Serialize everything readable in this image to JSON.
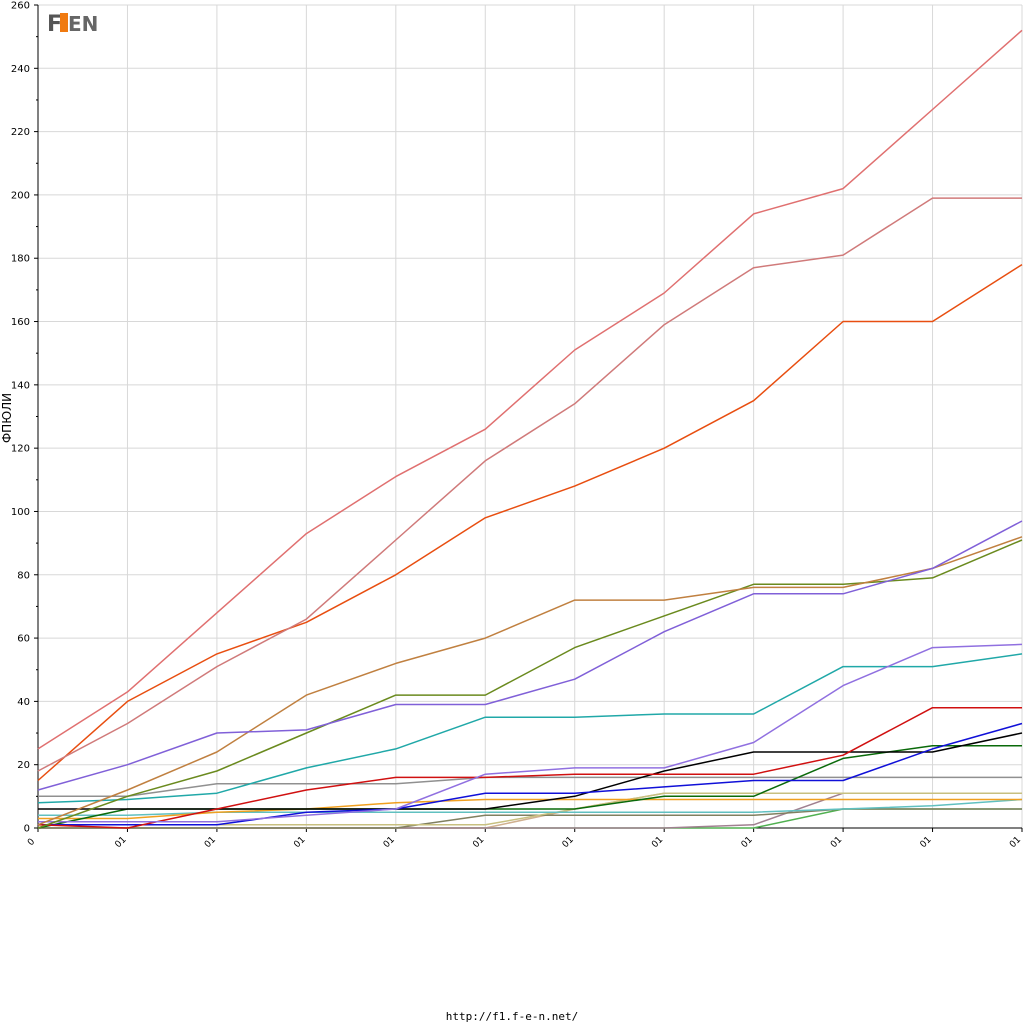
{
  "logo": {
    "text": "F1EN"
  },
  "footer": {
    "url": "http://f1.f-e-n.net/"
  },
  "chart_data": {
    "type": "line",
    "ylabel": "ФПЮЛИ",
    "xlabel": "",
    "ylim": [
      0,
      260
    ],
    "yticks": [
      0,
      20,
      40,
      60,
      80,
      100,
      120,
      140,
      160,
      180,
      200,
      220,
      240,
      260
    ],
    "grid": true,
    "categories": [
      "0",
      "01",
      "01",
      "01",
      "01",
      "01",
      "01",
      "01",
      "01",
      "01",
      "01",
      "01"
    ],
    "series": [
      {
        "color": "#e07070",
        "values": [
          25,
          43,
          68,
          93,
          111,
          126,
          151,
          169,
          194,
          202,
          227,
          252
        ]
      },
      {
        "color": "#d07a7a",
        "values": [
          18,
          33,
          51,
          66,
          91,
          116,
          134,
          159,
          177,
          181,
          199,
          199
        ]
      },
      {
        "color": "#e84e10",
        "values": [
          15,
          40,
          55,
          65,
          80,
          98,
          108,
          120,
          135,
          160,
          160,
          178
        ]
      },
      {
        "color": "#8060d8",
        "values": [
          12,
          20,
          30,
          31,
          39,
          39,
          47,
          62,
          74,
          74,
          82,
          97
        ]
      },
      {
        "color": "#c08040",
        "values": [
          1,
          12,
          24,
          42,
          52,
          60,
          72,
          72,
          76,
          76,
          82,
          92
        ]
      },
      {
        "color": "#6a8a1e",
        "values": [
          0,
          10,
          18,
          30,
          42,
          42,
          57,
          67,
          77,
          77,
          79,
          91
        ]
      },
      {
        "color": "#9070e0",
        "values": [
          2,
          2,
          2,
          4,
          6,
          17,
          19,
          19,
          27,
          45,
          57,
          58
        ]
      },
      {
        "color": "#20a8a8",
        "values": [
          8,
          9,
          11,
          19,
          25,
          35,
          35,
          36,
          36,
          51,
          51,
          55
        ]
      },
      {
        "color": "#d01010",
        "values": [
          1,
          0,
          6,
          12,
          16,
          16,
          17,
          17,
          17,
          23,
          38,
          38
        ]
      },
      {
        "color": "#1010d8",
        "values": [
          1,
          1,
          1,
          5,
          6,
          11,
          11,
          13,
          15,
          15,
          25,
          33
        ]
      },
      {
        "color": "#000000",
        "values": [
          6,
          6,
          6,
          6,
          6,
          6,
          10,
          18,
          24,
          24,
          24,
          30
        ]
      },
      {
        "color": "#0a6a0a",
        "values": [
          0,
          6,
          6,
          6,
          6,
          6,
          6,
          10,
          10,
          22,
          26,
          26
        ]
      },
      {
        "color": "#909090",
        "values": [
          10,
          10,
          14,
          14,
          14,
          16,
          16,
          16,
          16,
          16,
          16,
          16
        ]
      },
      {
        "color": "#f0a020",
        "values": [
          3,
          3,
          5,
          6,
          8,
          9,
          9,
          9,
          9,
          9,
          9,
          9
        ]
      },
      {
        "color": "#60c0c0",
        "values": [
          4,
          4,
          5,
          5,
          5,
          5,
          5,
          5,
          5,
          6,
          7,
          9
        ]
      },
      {
        "color": "#c8c080",
        "values": [
          1,
          1,
          1,
          1,
          1,
          1,
          6,
          11,
          11,
          11,
          11,
          11
        ]
      },
      {
        "color": "#808060",
        "values": [
          0,
          0,
          0,
          0,
          0,
          4,
          4,
          4,
          4,
          6,
          6,
          6
        ]
      },
      {
        "color": "#a08090",
        "values": [
          0,
          0,
          0,
          0,
          0,
          0,
          0,
          0,
          1,
          11,
          11,
          11
        ]
      },
      {
        "color": "#d0b090",
        "values": [
          0,
          0,
          0,
          0,
          0,
          0,
          6,
          11,
          11,
          11,
          11,
          11
        ]
      },
      {
        "color": "#50b050",
        "values": [
          0,
          0,
          0,
          0,
          0,
          0,
          0,
          0,
          0,
          6,
          6,
          6
        ]
      }
    ]
  }
}
